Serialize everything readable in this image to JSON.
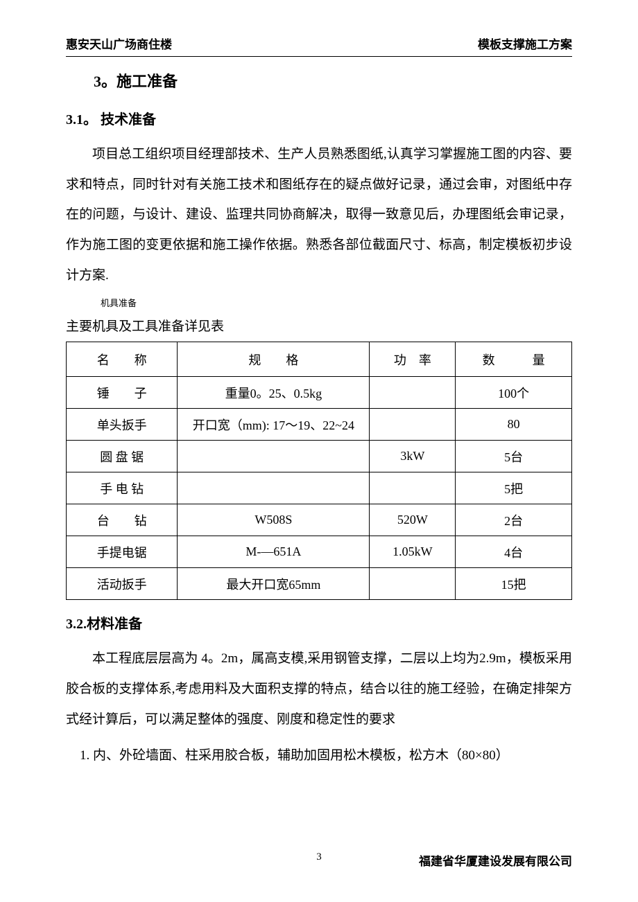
{
  "header": {
    "left": "惠安天山广场商住楼",
    "right": "模板支撑施工方案"
  },
  "section": {
    "number_title": "3。施工准备"
  },
  "subsection1": {
    "title": "3.1。 技术准备",
    "paragraph": "项目总工组织项目经理部技术、生产人员熟悉图纸,认真学习掌握施工图的内容、要求和特点，同时针对有关施工技术和图纸存在的疑点做好记录，通过会审，对图纸中存在的问题，与设计、建设、监理共同协商解决，取得一致意见后，办理图纸会审记录，作为施工图的变更依据和施工操作依据。熟悉各部位截面尺寸、标高，制定模板初步设计方案."
  },
  "tool_prep": {
    "small_label": "机具准备",
    "intro": "主要机具及工具准备详见表"
  },
  "table": {
    "headers": {
      "name": "名　　称",
      "spec": "规　　格",
      "power": "功　率",
      "qty": "数　　　量"
    },
    "rows": [
      {
        "name": "锤　　子",
        "spec": "重量0。25、0.5kg",
        "power": "",
        "qty": "100个"
      },
      {
        "name": "单头扳手",
        "spec": "开口宽（mm): 17～19、22~24",
        "power": "",
        "qty": "80"
      },
      {
        "name": "圆 盘 锯",
        "spec": "",
        "power": "3kW",
        "qty": "5台"
      },
      {
        "name": "手 电 钻",
        "spec": "",
        "power": "",
        "qty": "5把"
      },
      {
        "name": "台　　钻",
        "spec": "W508S",
        "power": "520W",
        "qty": "2台"
      },
      {
        "name": "手提电锯",
        "spec": "M-—651A",
        "power": "1.05kW",
        "qty": "4台"
      },
      {
        "name": "活动扳手",
        "spec": "最大开口宽65mm",
        "power": "",
        "qty": "15把"
      }
    ]
  },
  "subsection2": {
    "title": "3.2.材料准备",
    "paragraph": "本工程底层层高为 4。2m，属高支模,采用钢管支撑，二层以上均为2.9m，模板采用胶合板的支撑体系,考虑用料及大面积支撑的特点，结合以往的施工经验，在确定排架方式经计算后，可以满足整体的强度、刚度和稳定性的要求",
    "list_item_1": "1.  内、外砼墙面、柱采用胶合板，辅助加固用松木模板，松方木（80×80）"
  },
  "footer": {
    "page": "3",
    "company": "福建省华厦建设发展有限公司"
  }
}
